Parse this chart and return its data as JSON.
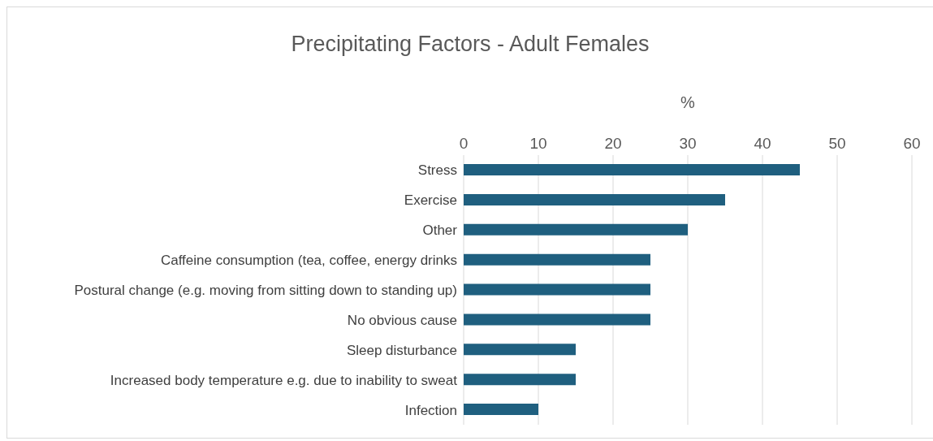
{
  "chart_data": {
    "type": "bar",
    "orientation": "horizontal",
    "title": "Precipitating Factors - Adult Females",
    "xlabel": "%",
    "categories": [
      "Stress",
      "Exercise",
      "Other",
      "Caffeine consumption (tea, coffee, energy drinks",
      "Postural change (e.g. moving from sitting down to standing up)",
      "No obvious cause",
      "Sleep disturbance",
      "Increased body temperature e.g. due to inability to sweat",
      "Infection"
    ],
    "values": [
      45,
      35,
      30,
      25,
      25,
      25,
      15,
      15,
      10
    ],
    "color": "#1f5f7f",
    "xlim": [
      0,
      60
    ],
    "xticks": [
      0,
      10,
      20,
      30,
      40,
      50,
      60
    ],
    "grid": "x"
  }
}
